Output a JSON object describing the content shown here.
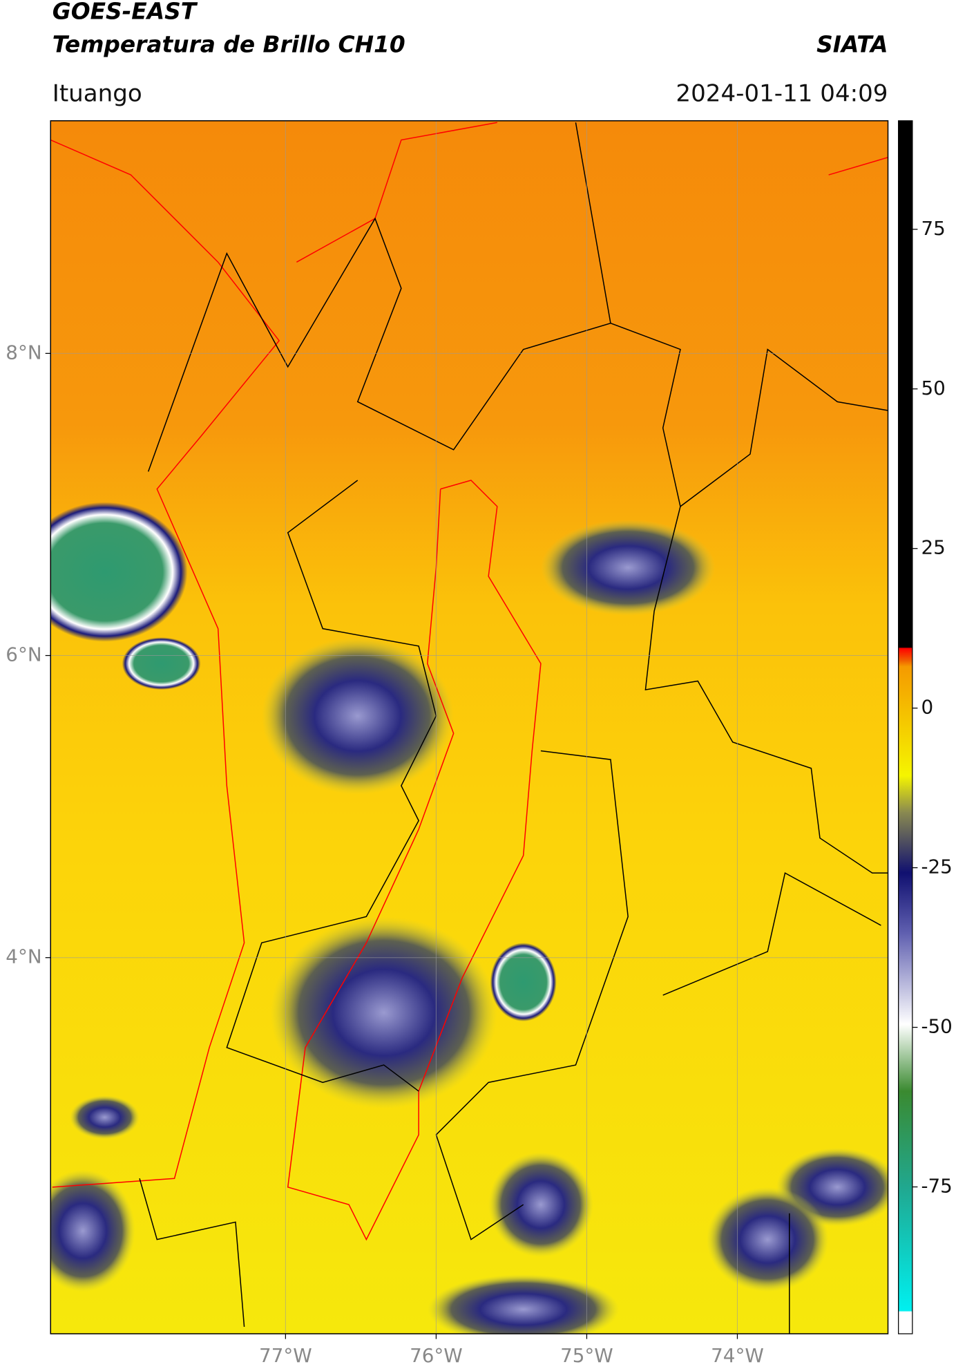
{
  "header": {
    "title": "GOES-EAST",
    "subtitle": "Temperatura de Brillo CH10",
    "brand": "SIATA",
    "location": "Ituango",
    "datetime": "2024-01-11 04:09"
  },
  "map": {
    "xlim": [
      -78.56,
      -73.0
    ],
    "ylim": [
      1.51,
      9.54
    ],
    "xticks": [
      {
        "value": -77,
        "label": "77°W"
      },
      {
        "value": -76,
        "label": "76°W"
      },
      {
        "value": -75,
        "label": "75°W"
      },
      {
        "value": -74,
        "label": "74°W"
      }
    ],
    "yticks": [
      {
        "value": 8,
        "label": "8°N"
      },
      {
        "value": 6,
        "label": "6°N"
      },
      {
        "value": 4,
        "label": "4°N"
      }
    ]
  },
  "colorbar": {
    "lim": [
      -98,
      92
    ],
    "ticks": [
      75,
      50,
      25,
      0,
      -25,
      -50,
      -75
    ]
  }
}
